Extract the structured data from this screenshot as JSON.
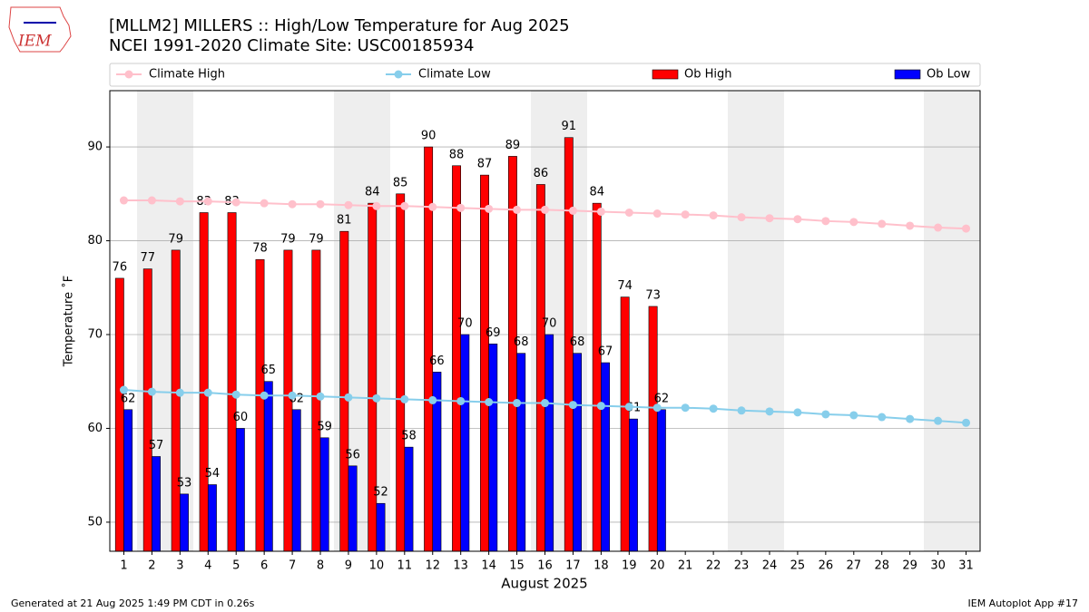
{
  "chart_data": {
    "type": "bar",
    "logo_text": "IEM",
    "title": "[MLLM2] MILLERS :: High/Low Temperature for Aug 2025",
    "subtitle": "NCEI 1991-2020 Climate Site: USC00185934",
    "x_label": "August 2025",
    "y_label": "Temperature ˚F",
    "footer_left": "Generated at 21 Aug 2025 1:49 PM CDT in 0.26s",
    "footer_right": "IEM Autoplot App #17",
    "x": [
      1,
      2,
      3,
      4,
      5,
      6,
      7,
      8,
      9,
      10,
      11,
      12,
      13,
      14,
      15,
      16,
      17,
      18,
      19,
      20,
      21,
      22,
      23,
      24,
      25,
      26,
      27,
      28,
      29,
      30,
      31
    ],
    "xlim": [
      0.5,
      31.5
    ],
    "xticks": [
      1,
      2,
      3,
      4,
      5,
      6,
      7,
      8,
      9,
      10,
      11,
      12,
      13,
      14,
      15,
      16,
      17,
      18,
      19,
      20,
      21,
      22,
      23,
      24,
      25,
      26,
      27,
      28,
      29,
      30,
      31
    ],
    "ylim": [
      46.9,
      96
    ],
    "yticks": [
      50,
      60,
      70,
      80,
      90
    ],
    "grid": true,
    "series": [
      {
        "name": "Climate High",
        "type": "line",
        "color": "#ffc0cb",
        "values": [
          84.3,
          84.3,
          84.2,
          84.2,
          84.1,
          84.0,
          83.9,
          83.9,
          83.8,
          83.7,
          83.7,
          83.6,
          83.5,
          83.4,
          83.3,
          83.3,
          83.2,
          83.1,
          83.0,
          82.9,
          82.8,
          82.7,
          82.5,
          82.4,
          82.3,
          82.1,
          82.0,
          81.8,
          81.6,
          81.4,
          81.3
        ]
      },
      {
        "name": "Climate Low",
        "type": "line",
        "color": "#87ceeb",
        "values": [
          64.1,
          63.9,
          63.8,
          63.8,
          63.6,
          63.5,
          63.5,
          63.4,
          63.3,
          63.2,
          63.1,
          63.0,
          62.9,
          62.8,
          62.7,
          62.7,
          62.5,
          62.4,
          62.3,
          62.2,
          62.2,
          62.1,
          61.9,
          61.8,
          61.7,
          61.5,
          61.4,
          61.2,
          61.0,
          60.8,
          60.6
        ]
      },
      {
        "name": "Ob High",
        "type": "bar",
        "color": "#ff0000",
        "values": [
          76,
          77,
          79,
          83,
          83,
          78,
          79,
          79,
          81,
          84,
          85,
          90,
          88,
          87,
          89,
          86,
          91,
          84,
          74,
          73,
          null,
          null,
          null,
          null,
          null,
          null,
          null,
          null,
          null,
          null,
          null
        ]
      },
      {
        "name": "Ob Low",
        "type": "bar",
        "color": "#0000ff",
        "values": [
          62,
          57,
          53,
          54,
          60,
          65,
          62,
          59,
          56,
          52,
          58,
          66,
          70,
          69,
          68,
          70,
          68,
          67,
          61,
          62,
          null,
          null,
          null,
          null,
          null,
          null,
          null,
          null,
          null,
          null,
          null
        ]
      }
    ]
  }
}
